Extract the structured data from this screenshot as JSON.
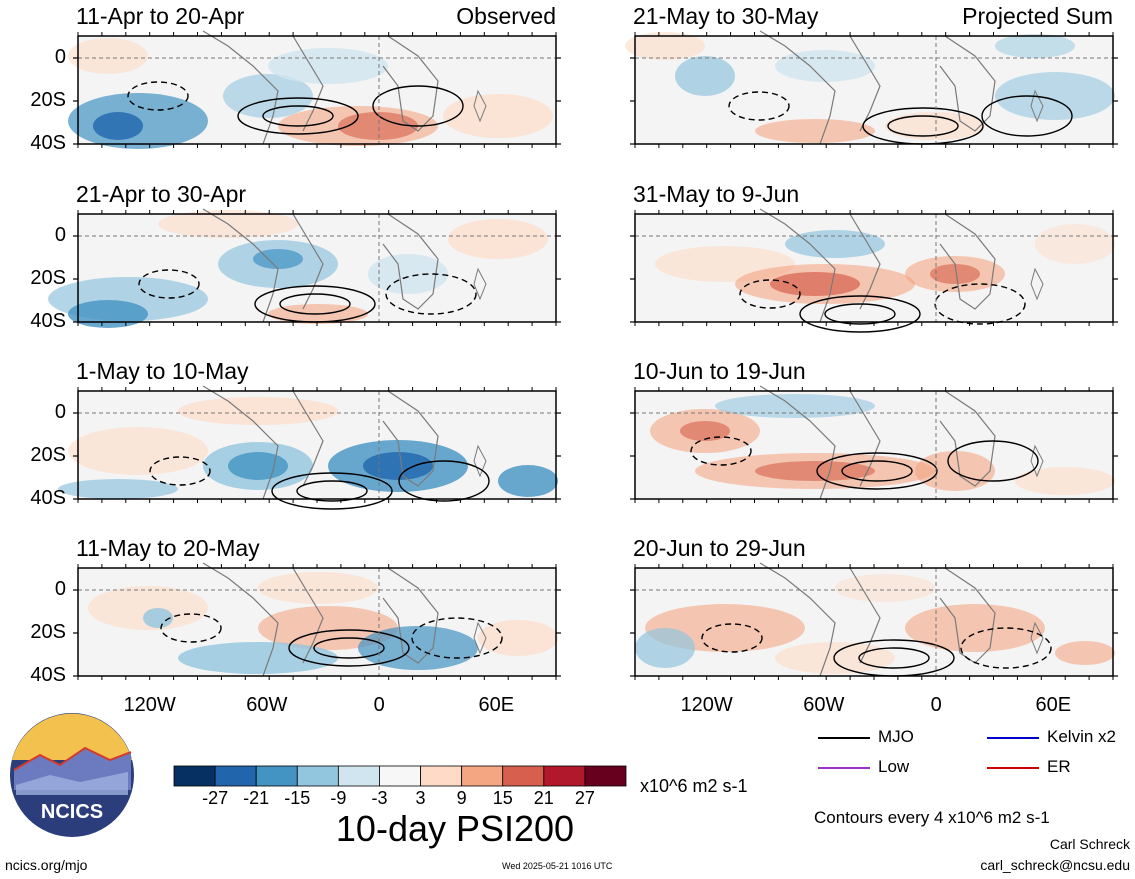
{
  "main_title": "10-day PSI200",
  "columns": {
    "left_label": "Observed",
    "right_label": "Projected Sum"
  },
  "panels": [
    {
      "title": "11-Apr to 20-Apr",
      "col": 0,
      "row": 0
    },
    {
      "title": "21-Apr to 30-Apr",
      "col": 0,
      "row": 1
    },
    {
      "title": "1-May to 10-May",
      "col": 0,
      "row": 2
    },
    {
      "title": "11-May to 20-May",
      "col": 0,
      "row": 3
    },
    {
      "title": "21-May to 30-May",
      "col": 1,
      "row": 0
    },
    {
      "title": "31-May to 9-Jun",
      "col": 1,
      "row": 1
    },
    {
      "title": "10-Jun to 19-Jun",
      "col": 1,
      "row": 2
    },
    {
      "title": "20-Jun to 29-Jun",
      "col": 1,
      "row": 3
    }
  ],
  "y_axis_labels": [
    "0",
    "20S",
    "40S"
  ],
  "x_axis_labels": [
    "120W",
    "60W",
    "0",
    "60E"
  ],
  "colorbar": {
    "ticks": [
      "-27",
      "-21",
      "-15",
      "-9",
      "-3",
      "3",
      "9",
      "15",
      "21",
      "27"
    ],
    "unit": "x10^6 m2 s-1",
    "colors": [
      "#053061",
      "#2166ac",
      "#4393c3",
      "#92c5de",
      "#d1e5f0",
      "#f7f7f7",
      "#fddbc7",
      "#f4a582",
      "#d6604d",
      "#b2182b",
      "#67001f"
    ]
  },
  "legend": [
    {
      "label": "MJO",
      "color": "#000000"
    },
    {
      "label": "Kelvin x2",
      "color": "#0000cc"
    },
    {
      "label": "Low",
      "color": "#9933cc"
    },
    {
      "label": "ER",
      "color": "#cc0000"
    }
  ],
  "contour_note": "Contours every 4 x10^6 m2 s-1",
  "author": "Carl Schreck",
  "email": "carl_schreck@ncsu.edu",
  "website": "ncics.org/mjo",
  "timestamp": "Wed 2025-05-21 1016 UTC",
  "logo_text": "NCICS"
}
